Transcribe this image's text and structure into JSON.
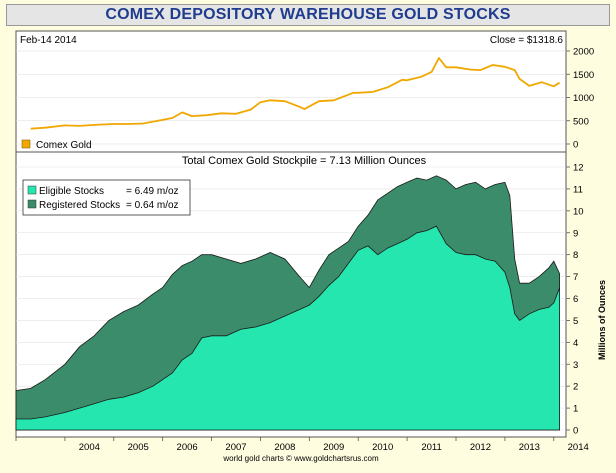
{
  "header": {
    "title": "COMEX DEPOSITORY WAREHOUSE GOLD STOCKS"
  },
  "footer": {
    "credit": "world gold charts © www.goldchartsrus.com"
  },
  "colors": {
    "gold": "#f0a800",
    "eligible": "#24e6ae",
    "registered": "#3a8c6a",
    "background": "#fffde0",
    "title": "#1f3c8f"
  },
  "chart_data": [
    {
      "type": "line",
      "panel": "top",
      "date_label": "Feb-14  2014",
      "close_label": "Close = $1318.6",
      "legend": [
        {
          "name": "Comex Gold",
          "color": "#f0a800"
        }
      ],
      "ylim": [
        0,
        2000
      ],
      "yticks": [
        "0",
        "500",
        "1000",
        "1500",
        "2000"
      ],
      "series": [
        {
          "name": "Comex Gold",
          "x": [
            2003.3,
            2003.6,
            2004.0,
            2004.3,
            2004.6,
            2005.0,
            2005.3,
            2005.6,
            2005.9,
            2006.2,
            2006.4,
            2006.6,
            2006.9,
            2007.2,
            2007.5,
            2007.8,
            2008.0,
            2008.2,
            2008.5,
            2008.8,
            2008.9,
            2009.2,
            2009.5,
            2009.9,
            2010.0,
            2010.3,
            2010.6,
            2010.9,
            2011.0,
            2011.3,
            2011.5,
            2011.65,
            2011.8,
            2012.0,
            2012.3,
            2012.5,
            2012.75,
            2013.0,
            2013.2,
            2013.3,
            2013.5,
            2013.75,
            2014.0,
            2014.12
          ],
          "y": [
            330,
            350,
            400,
            390,
            410,
            430,
            430,
            440,
            500,
            560,
            680,
            600,
            620,
            660,
            650,
            740,
            900,
            940,
            920,
            800,
            750,
            920,
            940,
            1100,
            1100,
            1120,
            1220,
            1380,
            1370,
            1450,
            1550,
            1850,
            1650,
            1650,
            1600,
            1590,
            1700,
            1660,
            1590,
            1400,
            1250,
            1330,
            1240,
            1318.6
          ]
        }
      ]
    },
    {
      "type": "area",
      "panel": "bottom",
      "title": "Total Comex Gold Stockpile = 7.13 Million Ounces",
      "ylabel": "Millions of Ounces",
      "xlabels": [
        "2004",
        "2005",
        "2006",
        "2007",
        "2008",
        "2009",
        "2010",
        "2011",
        "2012",
        "2013",
        "2014"
      ],
      "ylim": [
        0,
        12
      ],
      "yticks": [
        "0",
        "1",
        "2",
        "3",
        "4",
        "5",
        "6",
        "7",
        "8",
        "9",
        "10",
        "11",
        "12"
      ],
      "legend": [
        {
          "name": "Eligible Stocks",
          "value": "= 6.49 m/oz",
          "color": "#24e6ae"
        },
        {
          "name": "Registered Stocks",
          "value": "= 0.64 m/oz",
          "color": "#3a8c6a"
        }
      ],
      "x": [
        2003.0,
        2003.3,
        2003.6,
        2004.0,
        2004.3,
        2004.6,
        2004.9,
        2005.2,
        2005.5,
        2005.8,
        2006.0,
        2006.2,
        2006.4,
        2006.6,
        2006.8,
        2007.0,
        2007.3,
        2007.6,
        2007.9,
        2008.2,
        2008.5,
        2008.8,
        2009.0,
        2009.2,
        2009.4,
        2009.6,
        2009.8,
        2010.0,
        2010.2,
        2010.4,
        2010.6,
        2010.8,
        2011.0,
        2011.2,
        2011.4,
        2011.6,
        2011.8,
        2012.0,
        2012.2,
        2012.4,
        2012.6,
        2012.8,
        2013.0,
        2013.1,
        2013.2,
        2013.3,
        2013.5,
        2013.7,
        2013.9,
        2014.0,
        2014.12
      ],
      "series": [
        {
          "name": "Eligible Stocks",
          "values": [
            0.5,
            0.5,
            0.6,
            0.8,
            1.0,
            1.2,
            1.4,
            1.5,
            1.7,
            2.0,
            2.3,
            2.6,
            3.2,
            3.5,
            4.2,
            4.3,
            4.3,
            4.6,
            4.7,
            4.9,
            5.2,
            5.5,
            5.7,
            6.1,
            6.6,
            7.0,
            7.6,
            8.2,
            8.4,
            8.0,
            8.3,
            8.5,
            8.7,
            9.0,
            9.1,
            9.3,
            8.5,
            8.1,
            8.0,
            8.0,
            7.8,
            7.7,
            7.2,
            6.5,
            5.3,
            5.0,
            5.3,
            5.5,
            5.6,
            5.8,
            6.49
          ]
        },
        {
          "name": "Registered Stocks",
          "values": [
            1.8,
            1.9,
            2.3,
            3.0,
            3.8,
            4.3,
            5.0,
            5.4,
            5.7,
            6.2,
            6.5,
            7.1,
            7.5,
            7.7,
            8.0,
            8.0,
            7.8,
            7.6,
            7.8,
            8.1,
            7.8,
            7.0,
            6.5,
            7.3,
            8.0,
            8.3,
            8.6,
            9.3,
            9.8,
            10.5,
            10.8,
            11.1,
            11.3,
            11.5,
            11.4,
            11.6,
            11.4,
            11.0,
            11.2,
            11.3,
            11.0,
            11.2,
            11.3,
            10.7,
            7.8,
            6.7,
            6.7,
            7.0,
            7.4,
            7.7,
            7.13
          ]
        }
      ]
    }
  ]
}
